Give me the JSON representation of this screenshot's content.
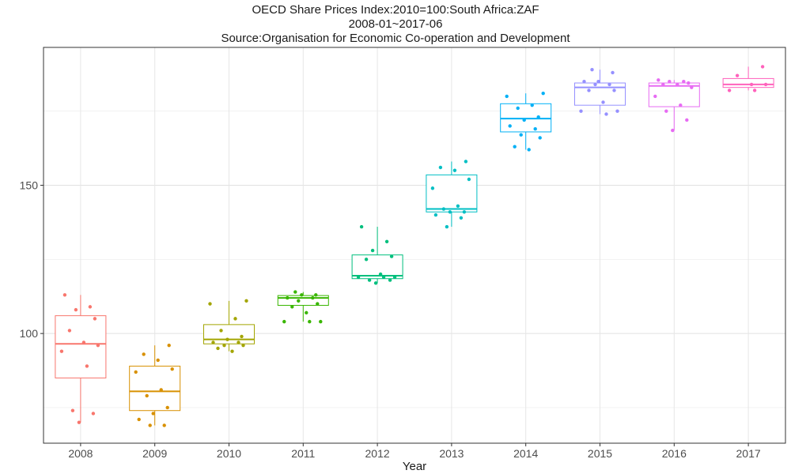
{
  "chart_data": {
    "type": "boxplot",
    "title": "OECD Share Prices Index:2010=100:South Africa:ZAF",
    "subtitle": "2008-01~2017-06",
    "source": "Source:Organisation for Economic Co-operation and Development",
    "xlabel": "Year",
    "ylabel": "",
    "ylim": [
      63,
      196.5
    ],
    "yticks": [
      100,
      150
    ],
    "grid": true,
    "legend": "none",
    "categories": [
      "2008",
      "2009",
      "2010",
      "2011",
      "2012",
      "2013",
      "2014",
      "2015",
      "2016",
      "2017"
    ],
    "colors": [
      "#F8766D",
      "#D89000",
      "#A3A500",
      "#39B600",
      "#00BF7D",
      "#00BFC4",
      "#00B0F6",
      "#9590FF",
      "#E76BF3",
      "#FF62BC"
    ],
    "boxes": [
      {
        "year": "2008",
        "min": 70,
        "q1": 85,
        "median": 96.5,
        "q3": 106,
        "max": 113
      },
      {
        "year": "2009",
        "min": 69,
        "q1": 74,
        "median": 80.5,
        "q3": 89,
        "max": 96
      },
      {
        "year": "2010",
        "min": 94,
        "q1": 96.5,
        "median": 98,
        "q3": 103,
        "max": 111
      },
      {
        "year": "2011",
        "min": 104,
        "q1": 109.5,
        "median": 112,
        "q3": 112.8,
        "max": 114
      },
      {
        "year": "2012",
        "min": 117,
        "q1": 118.5,
        "median": 119.5,
        "q3": 126.5,
        "max": 136
      },
      {
        "year": "2013",
        "min": 136,
        "q1": 141,
        "median": 142,
        "q3": 153.5,
        "max": 158
      },
      {
        "year": "2014",
        "min": 162,
        "q1": 168,
        "median": 172.5,
        "q3": 177.5,
        "max": 181
      },
      {
        "year": "2015",
        "min": 174,
        "q1": 177,
        "median": 183,
        "q3": 184.5,
        "max": 189
      },
      {
        "year": "2016",
        "min": 168.5,
        "q1": 176.5,
        "median": 183.5,
        "q3": 184.5,
        "max": 185.5
      },
      {
        "year": "2017",
        "min": 182,
        "q1": 183,
        "median": 184,
        "q3": 186,
        "max": 190
      }
    ],
    "points": [
      [
        113,
        109,
        108,
        105,
        101,
        97,
        96,
        94,
        89,
        74,
        73,
        70
      ],
      [
        96,
        93,
        91,
        88,
        87,
        81,
        79,
        75,
        73,
        71,
        69,
        69
      ],
      [
        111,
        110,
        105,
        101,
        99,
        98,
        97,
        97,
        96,
        96,
        95,
        94
      ],
      [
        114,
        113,
        113,
        112,
        112,
        111,
        110,
        109,
        107,
        104,
        104,
        104
      ],
      [
        136,
        131,
        128,
        126,
        125,
        120,
        119,
        119,
        119,
        118,
        118,
        117
      ],
      [
        158,
        156,
        155,
        152,
        149,
        143,
        142,
        141,
        141,
        140,
        139,
        136
      ],
      [
        181,
        180,
        177,
        176,
        173,
        172,
        170,
        169,
        167,
        166,
        163,
        162
      ],
      [
        189,
        188,
        185,
        185,
        184,
        184,
        182,
        182,
        178,
        175,
        175,
        174
      ],
      [
        185.5,
        185,
        185,
        184.5,
        184,
        184,
        183,
        180,
        177,
        175,
        172,
        168.5
      ],
      [
        190,
        187,
        184,
        184,
        182,
        182
      ]
    ]
  }
}
